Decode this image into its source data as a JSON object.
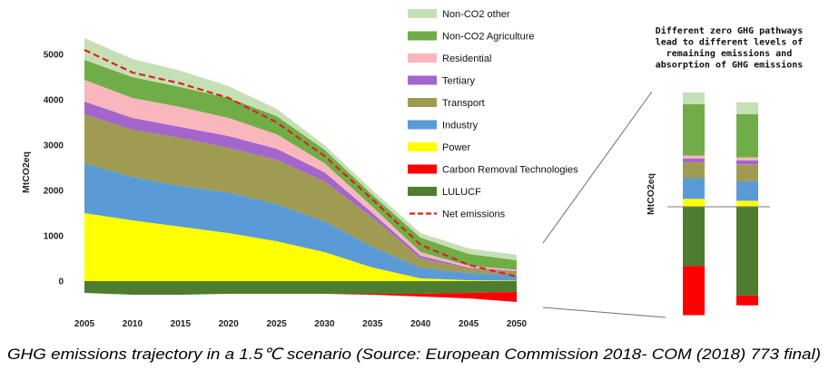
{
  "caption": "GHG emissions trajectory in a 1.5℃ scenario (Source: European Commission 2018- COM (2018) 773 final)",
  "chart_data": [
    {
      "type": "area",
      "stacked": true,
      "title": "",
      "xlabel": "",
      "ylabel": "MtCO2eq",
      "x": [
        2005,
        2010,
        2015,
        2020,
        2025,
        2030,
        2035,
        2040,
        2045,
        2050
      ],
      "y_ticks": [
        0,
        1000,
        2000,
        3000,
        4000,
        5000
      ],
      "ylim": [
        -500,
        5500
      ],
      "grid": false,
      "legend_position": "top-right",
      "series": [
        {
          "name": "Power",
          "type": "area",
          "color": "#ffff00",
          "values": [
            1500,
            1340,
            1200,
            1060,
            880,
            640,
            300,
            60,
            20,
            10
          ]
        },
        {
          "name": "Industry",
          "type": "area",
          "color": "#5b9bd5",
          "values": [
            1100,
            960,
            900,
            900,
            820,
            680,
            460,
            240,
            160,
            120
          ]
        },
        {
          "name": "Transport",
          "type": "area",
          "color": "#a09b52",
          "values": [
            1080,
            1040,
            1060,
            980,
            980,
            880,
            640,
            200,
            100,
            70
          ]
        },
        {
          "name": "Tertiary",
          "type": "area",
          "color": "#a366cc",
          "values": [
            280,
            260,
            240,
            260,
            240,
            200,
            100,
            60,
            20,
            20
          ]
        },
        {
          "name": "Residential",
          "type": "area",
          "color": "#f9b6bd",
          "values": [
            480,
            440,
            440,
            400,
            320,
            200,
            140,
            80,
            40,
            30
          ]
        },
        {
          "name": "Non-CO2 Agriculture",
          "type": "area",
          "color": "#70ad47",
          "values": [
            440,
            460,
            440,
            440,
            400,
            300,
            260,
            320,
            260,
            210
          ]
        },
        {
          "name": "Non-CO2 other",
          "type": "area",
          "color": "#c5e0b4",
          "values": [
            480,
            400,
            360,
            260,
            160,
            100,
            100,
            100,
            120,
            120
          ]
        },
        {
          "name": "LULUCF",
          "type": "area",
          "color": "#4e7d30",
          "values": [
            -260,
            -300,
            -300,
            -280,
            -280,
            -280,
            -280,
            -280,
            -260,
            -240
          ]
        },
        {
          "name": "Carbon Removal Technologies",
          "type": "area",
          "color": "#ff0000",
          "values": [
            0,
            0,
            0,
            0,
            0,
            0,
            -20,
            -60,
            -120,
            -220
          ]
        },
        {
          "name": "Net emissions",
          "type": "line",
          "style": "dashed",
          "color": "#e02020",
          "values": [
            5100,
            4600,
            4360,
            4040,
            3500,
            2760,
            1800,
            800,
            360,
            100
          ]
        }
      ]
    },
    {
      "type": "bar",
      "stacked": true,
      "ylabel": "MtCO2eq",
      "annotation": [
        "Different zero GHG pathways",
        "lead to different levels of",
        "remaining emissions and",
        "absorption of GHG emissions"
      ],
      "grid": false,
      "series": [
        {
          "color": "#ffff00",
          "values": [
            40,
            30
          ]
        },
        {
          "color": "#5b9bd5",
          "values": [
            105,
            100
          ]
        },
        {
          "color": "#a09b52",
          "values": [
            80,
            85
          ]
        },
        {
          "color": "#a366cc",
          "values": [
            20,
            20
          ]
        },
        {
          "color": "#f9b6bd",
          "values": [
            15,
            15
          ]
        },
        {
          "color": "#70ad47",
          "values": [
            260,
            220
          ]
        },
        {
          "color": "#c5e0b4",
          "values": [
            60,
            60
          ]
        },
        {
          "color": "#4e7d30",
          "values": [
            -300,
            -450
          ]
        },
        {
          "color": "#ff0000",
          "values": [
            -250,
            -50
          ]
        }
      ]
    }
  ]
}
